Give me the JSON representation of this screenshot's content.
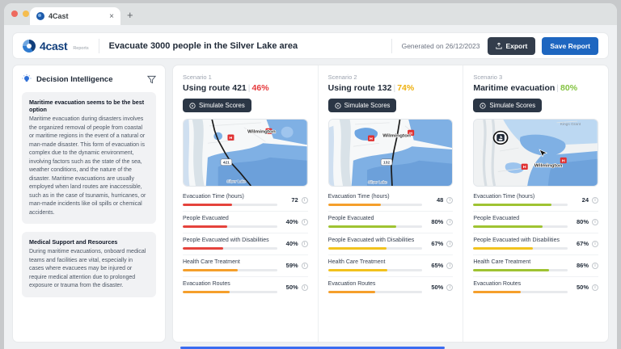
{
  "browser": {
    "tab_title": "4Cast",
    "close": "×",
    "new_tab": "+"
  },
  "header": {
    "logo_text": "4cast",
    "logo_sub": "Reports",
    "title": "Evacuate 3000 people in the Silver Lake area",
    "generated": "Generated on 26/12/2023",
    "export_label": "Export",
    "save_label": "Save Report"
  },
  "sidebar": {
    "title": "Decision Intelligence",
    "cards": [
      {
        "heading": "Maritime evacuation seems to be the best option",
        "body": "Maritime evacuation during disasters involves the organized removal of people from coastal or maritime regions in the event of a natural or man-made disaster. This form of evacuation is complex due to the dynamic environment, involving factors such as the state of the sea, weather conditions, and the nature of the disaster. Maritime evacuations are usually employed when land routes are inaccessible, such as in the case of tsunamis, hurricanes, or man-made incidents like oil spills or chemical accidents."
      },
      {
        "heading": "Medical Support and Resources",
        "body": "During maritime evacuations, onboard medical teams and facilities are vital, especially in cases where evacuees may be injured or require medical attention due to prolonged exposure or trauma from the disaster."
      }
    ]
  },
  "sep": "|",
  "scenarios": [
    {
      "label": "Scenario 1",
      "title": "Using route 421",
      "score": "46%",
      "score_color": "#e5383b",
      "button": "Simulate Scores",
      "map": {
        "route": "421",
        "city": "Wilmington",
        "lake": "Silver Lake"
      },
      "metrics": [
        {
          "label": "Evacuation Time (hours)",
          "value": "72",
          "bar": 52,
          "color": "#e5433c"
        },
        {
          "label": "People Evacuated",
          "value": "40%",
          "bar": 47,
          "color": "#e5433c"
        },
        {
          "label": "People Evacuated with Disabilities",
          "value": "40%",
          "bar": 43,
          "color": "#e5433c"
        },
        {
          "label": "Health Care Treatment",
          "value": "59%",
          "bar": 58,
          "color": "#f59f2b"
        },
        {
          "label": "Evacuation Routes",
          "value": "50%",
          "bar": 50,
          "color": "#f59f2b"
        }
      ]
    },
    {
      "label": "Scenario 2",
      "title": "Using route 132",
      "score": "74%",
      "score_color": "#eeb00e",
      "button": "Simulate Scores",
      "map": {
        "route": "132",
        "city": "Wilmington",
        "lake": "Silver Lake"
      },
      "metrics": [
        {
          "label": "Evacuation Time (hours)",
          "value": "48",
          "bar": 56,
          "color": "#f59f2b"
        },
        {
          "label": "People Evacuated",
          "value": "80%",
          "bar": 72,
          "color": "#9fc332"
        },
        {
          "label": "People Evacuated with Disabilities",
          "value": "67%",
          "bar": 62,
          "color": "#f2c21d"
        },
        {
          "label": "Health Care Treatment",
          "value": "65%",
          "bar": 63,
          "color": "#f2c21d"
        },
        {
          "label": "Evacuation Routes",
          "value": "50%",
          "bar": 50,
          "color": "#f59f2b"
        }
      ]
    },
    {
      "label": "Scenario 3",
      "title": "Maritime evacuation",
      "score": "80%",
      "score_color": "#84c341",
      "button": "Simulate Scores",
      "map": {
        "city": "Wilmington",
        "area": "Kings Grant"
      },
      "metrics": [
        {
          "label": "Evacuation Time (hours)",
          "value": "24",
          "bar": 83,
          "color": "#9fc332"
        },
        {
          "label": "People Evacuated",
          "value": "80%",
          "bar": 73,
          "color": "#9fc332"
        },
        {
          "label": "People Evacuated with Disabilities",
          "value": "67%",
          "bar": 63,
          "color": "#f2c21d"
        },
        {
          "label": "Health Care Treatment",
          "value": "86%",
          "bar": 80,
          "color": "#9fc332"
        },
        {
          "label": "Evacuation Routes",
          "value": "50%",
          "bar": 50,
          "color": "#f59f2b"
        }
      ]
    }
  ]
}
